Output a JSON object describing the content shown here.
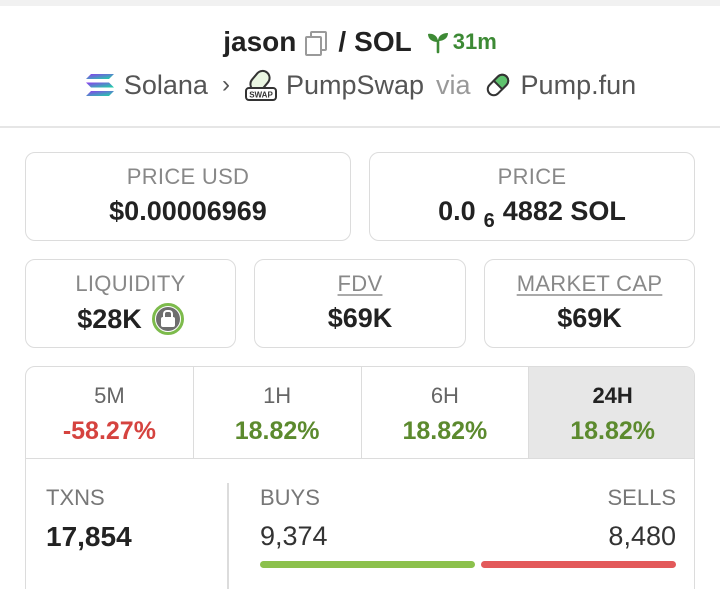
{
  "header": {
    "token_name": "jason",
    "quote_symbol": "SOL",
    "age": "31m",
    "chain": "Solana",
    "dex": "PumpSwap",
    "via_text": "via",
    "launchpad": "Pump.fun"
  },
  "stats": {
    "price_usd": {
      "label": "PRICE USD",
      "value": "$0.00006969"
    },
    "price": {
      "label": "PRICE",
      "prefix": "0.0",
      "subscript": "6",
      "suffix": "4882 SOL"
    },
    "liquidity": {
      "label": "LIQUIDITY",
      "value": "$28K"
    },
    "fdv": {
      "label": "FDV",
      "value": "$69K"
    },
    "market_cap": {
      "label": "MARKET CAP",
      "value": "$69K"
    }
  },
  "timeframes": [
    {
      "label": "5M",
      "change": "-58.27%",
      "direction": "down"
    },
    {
      "label": "1H",
      "change": "18.82%",
      "direction": "up"
    },
    {
      "label": "6H",
      "change": "18.82%",
      "direction": "up"
    },
    {
      "label": "24H",
      "change": "18.82%",
      "direction": "up",
      "selected": true
    }
  ],
  "txns": {
    "label": "TXNS",
    "value": "17,854",
    "buys_label": "BUYS",
    "buys": "9,374",
    "sells_label": "SELLS",
    "sells": "8,480",
    "buy_share": 0.525
  },
  "colors": {
    "positive": "#5c8a2e",
    "negative": "#d5433f",
    "age_green": "#3d8a35",
    "buy_bar": "#8cc14c",
    "sell_bar": "#e3595a"
  },
  "icons": [
    "copy-icon",
    "sprout-icon",
    "solana-icon",
    "chevron-right-icon",
    "pumpswap-icon",
    "pill-icon",
    "lock-icon"
  ]
}
